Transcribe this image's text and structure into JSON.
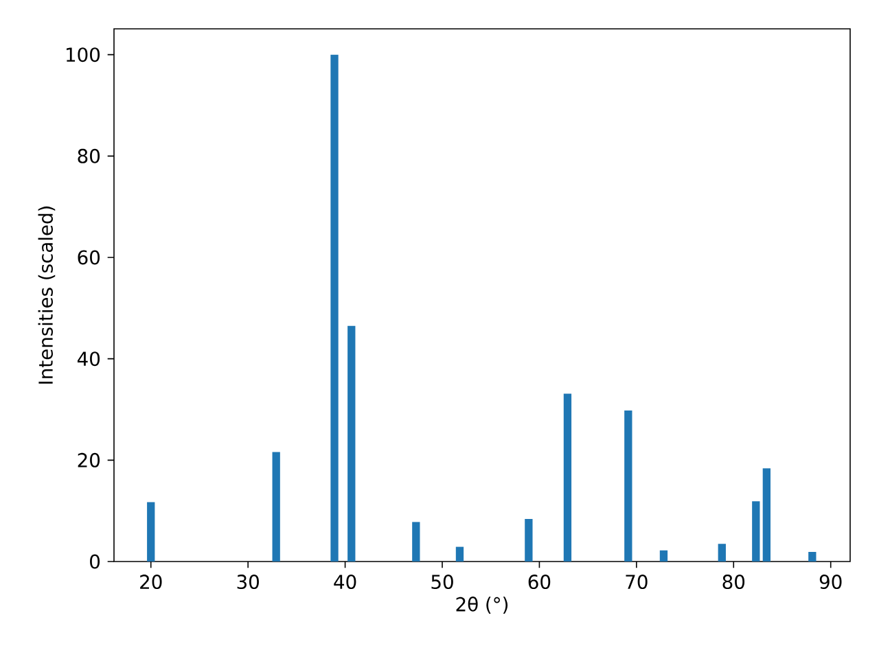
{
  "chart_data": {
    "type": "bar",
    "xlabel": "2θ (°)",
    "ylabel": "Intensities (scaled)",
    "x": [
      20.0,
      32.9,
      38.9,
      40.65,
      47.3,
      51.8,
      58.9,
      62.9,
      69.15,
      72.8,
      78.8,
      82.3,
      83.4,
      88.1
    ],
    "values": [
      11.7,
      21.6,
      100,
      46.5,
      7.8,
      2.9,
      8.4,
      33.1,
      29.8,
      2.2,
      3.5,
      11.9,
      18.4,
      1.9
    ],
    "color": "#1f77b4",
    "xlim": [
      16.2,
      92.0
    ],
    "ylim": [
      0,
      105.1
    ],
    "xticks": [
      20,
      30,
      40,
      50,
      60,
      70,
      80,
      90
    ],
    "yticks": [
      0,
      20,
      40,
      60,
      80,
      100
    ]
  }
}
